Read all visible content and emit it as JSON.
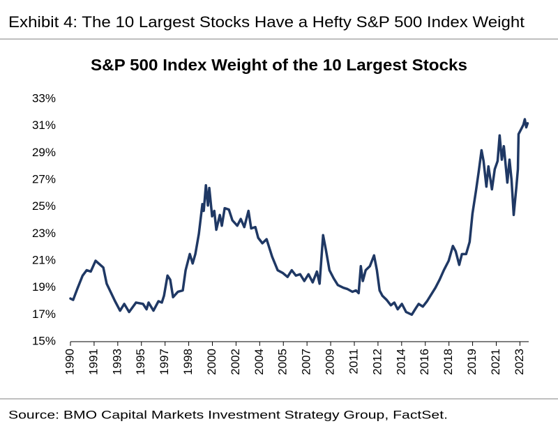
{
  "chart_data": {
    "type": "line",
    "header": "Exhibit 4: The 10 Largest Stocks Have a Hefty S&P 500 Index Weight",
    "title": "S&P 500 Index Weight of the 10 Largest Stocks",
    "source": "Source: BMO Capital Markets Investment Strategy Group, FactSet.",
    "color": "#1f3864",
    "xlim": [
      1990,
      2023.9
    ],
    "xticks": [
      {
        "value": 1990,
        "label": "1990"
      },
      {
        "value": 1991.75,
        "label": "1991"
      },
      {
        "value": 1993.5,
        "label": "1993"
      },
      {
        "value": 1995.25,
        "label": "1995"
      },
      {
        "value": 1997,
        "label": "1997"
      },
      {
        "value": 1998.75,
        "label": "1998"
      },
      {
        "value": 2000.5,
        "label": "2000"
      },
      {
        "value": 2002.25,
        "label": "2002"
      },
      {
        "value": 2004,
        "label": "2004"
      },
      {
        "value": 2005.75,
        "label": "2005"
      },
      {
        "value": 2007.5,
        "label": "2007"
      },
      {
        "value": 2009.25,
        "label": "2009"
      },
      {
        "value": 2011,
        "label": "2011"
      },
      {
        "value": 2012.75,
        "label": "2012"
      },
      {
        "value": 2014.5,
        "label": "2014"
      },
      {
        "value": 2016.25,
        "label": "2016"
      },
      {
        "value": 2018,
        "label": "2018"
      },
      {
        "value": 2019.75,
        "label": "2019"
      },
      {
        "value": 2021.5,
        "label": "2021"
      },
      {
        "value": 2023.25,
        "label": "2023"
      }
    ],
    "ylim": [
      15,
      33
    ],
    "yticks": [
      {
        "value": 15,
        "label": "15%"
      },
      {
        "value": 17,
        "label": "17%"
      },
      {
        "value": 19,
        "label": "19%"
      },
      {
        "value": 21,
        "label": "21%"
      },
      {
        "value": 23,
        "label": "23%"
      },
      {
        "value": 25,
        "label": "25%"
      },
      {
        "value": 27,
        "label": "27%"
      },
      {
        "value": 29,
        "label": "29%"
      },
      {
        "value": 31,
        "label": "31%"
      },
      {
        "value": 33,
        "label": "33%"
      }
    ],
    "x": [
      1990.0,
      1990.2,
      1990.5,
      1990.9,
      1991.2,
      1991.5,
      1991.86,
      1992.43,
      1992.68,
      1993.3,
      1993.67,
      1993.98,
      1994.34,
      1994.85,
      1995.37,
      1995.63,
      1995.78,
      1996.14,
      1996.51,
      1996.76,
      1996.92,
      1997.18,
      1997.38,
      1997.59,
      1997.95,
      1998.31,
      1998.52,
      1998.83,
      1999.04,
      1999.24,
      1999.5,
      1999.76,
      1999.86,
      2000.02,
      2000.17,
      2000.27,
      2000.48,
      2000.64,
      2000.79,
      2001.05,
      2001.2,
      2001.41,
      2001.72,
      2001.98,
      2002.34,
      2002.6,
      2002.86,
      2003.17,
      2003.37,
      2003.68,
      2003.89,
      2004.2,
      2004.51,
      2004.92,
      2005.33,
      2005.7,
      2006.06,
      2006.37,
      2006.68,
      2006.99,
      2007.3,
      2007.61,
      2007.92,
      2008.23,
      2008.43,
      2008.69,
      2008.9,
      2009.16,
      2009.47,
      2009.78,
      2010.19,
      2010.5,
      2010.86,
      2011.12,
      2011.32,
      2011.48,
      2011.63,
      2011.84,
      2012.15,
      2012.46,
      2012.67,
      2012.87,
      2013.08,
      2013.39,
      2013.7,
      2013.96,
      2014.21,
      2014.52,
      2014.83,
      2015.25,
      2015.56,
      2015.76,
      2016.07,
      2016.38,
      2016.69,
      2017.0,
      2017.31,
      2017.62,
      2017.98,
      2018.29,
      2018.5,
      2018.76,
      2018.96,
      2019.27,
      2019.53,
      2019.74,
      2020.0,
      2020.2,
      2020.41,
      2020.56,
      2020.77,
      2020.92,
      2021.18,
      2021.39,
      2021.6,
      2021.75,
      2021.91,
      2022.06,
      2022.32,
      2022.48,
      2022.63,
      2022.79,
      2022.99,
      2023.1,
      2023.15,
      2023.36,
      2023.51,
      2023.61,
      2023.72,
      2023.82
    ],
    "values": [
      18.2,
      18.1,
      18.9,
      19.9,
      20.3,
      20.2,
      21.0,
      20.5,
      19.3,
      18.0,
      17.3,
      17.8,
      17.2,
      17.9,
      17.8,
      17.4,
      17.9,
      17.3,
      18.0,
      17.9,
      18.4,
      19.9,
      19.6,
      18.3,
      18.7,
      18.8,
      20.3,
      21.5,
      20.8,
      21.5,
      23.0,
      25.2,
      24.7,
      26.6,
      25.1,
      26.4,
      24.3,
      24.7,
      23.3,
      24.4,
      23.6,
      24.9,
      24.8,
      24.0,
      23.6,
      24.1,
      23.5,
      24.7,
      23.4,
      23.5,
      22.7,
      22.3,
      22.6,
      21.3,
      20.3,
      20.1,
      19.8,
      20.3,
      19.9,
      20.0,
      19.5,
      20.0,
      19.4,
      20.2,
      19.3,
      22.9,
      21.8,
      20.3,
      19.7,
      19.2,
      19.0,
      18.9,
      18.7,
      18.8,
      18.6,
      20.6,
      19.5,
      20.3,
      20.6,
      21.4,
      20.3,
      18.8,
      18.4,
      18.1,
      17.7,
      17.9,
      17.4,
      17.8,
      17.2,
      17.0,
      17.5,
      17.8,
      17.6,
      18.0,
      18.5,
      19.0,
      19.6,
      20.3,
      21.0,
      22.1,
      21.7,
      20.7,
      21.5,
      21.5,
      22.4,
      24.5,
      26.2,
      27.6,
      29.2,
      28.4,
      26.5,
      28.0,
      26.3,
      27.8,
      28.4,
      30.3,
      28.5,
      29.5,
      26.8,
      28.5,
      27.0,
      24.4,
      26.5,
      27.8,
      30.4,
      30.8,
      31.1,
      31.5,
      30.9,
      31.2
    ]
  }
}
